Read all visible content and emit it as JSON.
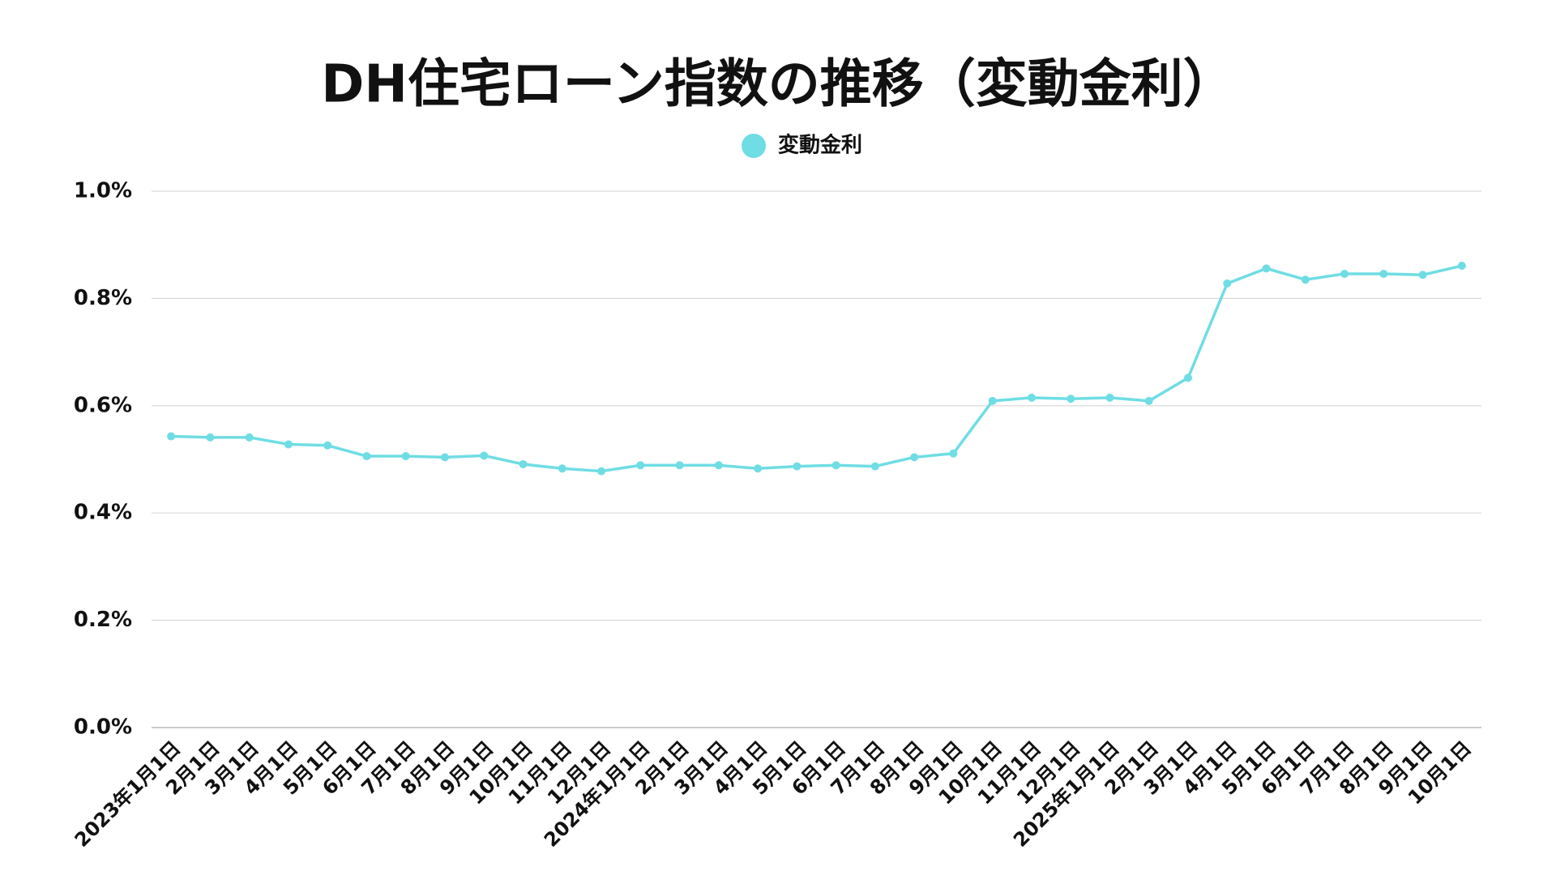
{
  "chart_data": {
    "type": "line",
    "title": "DH住宅ローン指数の推移（変動金利）",
    "categories": [
      "2023年1月1日",
      "2月1日",
      "3月1日",
      "4月1日",
      "5月1日",
      "6月1日",
      "7月1日",
      "8月1日",
      "9月1日",
      "10月1日",
      "11月1日",
      "12月1日",
      "2024年1月1日",
      "2月1日",
      "3月1日",
      "4月1日",
      "5月1日",
      "6月1日",
      "7月1日",
      "8月1日",
      "9月1日",
      "10月1日",
      "11月1日",
      "12月1日",
      "2025年1月1日",
      "2月1日",
      "3月1日",
      "4月1日",
      "5月1日",
      "6月1日",
      "7月1日",
      "8月1日",
      "9月1日",
      "10月1日"
    ],
    "series": [
      {
        "name": "変動金利",
        "color": "#6fdde3",
        "values": [
          0.543,
          0.541,
          0.541,
          0.528,
          0.526,
          0.506,
          0.506,
          0.504,
          0.507,
          0.491,
          0.483,
          0.478,
          0.489,
          0.489,
          0.489,
          0.483,
          0.487,
          0.489,
          0.487,
          0.504,
          0.511,
          0.609,
          0.615,
          0.613,
          0.615,
          0.609,
          0.652,
          0.828,
          0.856,
          0.835,
          0.846,
          0.846,
          0.844,
          0.861
        ]
      }
    ],
    "ylim": [
      0,
      1.0
    ],
    "yticks": [
      {
        "value": 0,
        "label": "0.0%"
      },
      {
        "value": 0.2,
        "label": "0.2%"
      },
      {
        "value": 0.4,
        "label": "0.4%"
      },
      {
        "value": 0.6,
        "label": "0.6%"
      },
      {
        "value": 0.8,
        "label": "0.8%"
      },
      {
        "value": 1.0,
        "label": "1.0%"
      }
    ],
    "grid": true,
    "legend": "top"
  }
}
